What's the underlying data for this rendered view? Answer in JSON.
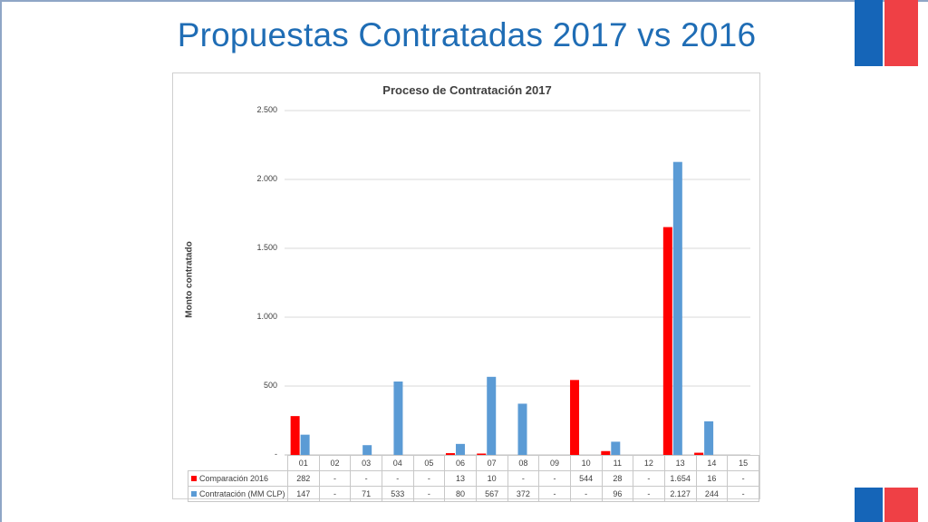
{
  "slide": {
    "title": "Propuestas Contratadas 2017 vs 2016"
  },
  "chart_data": {
    "type": "bar",
    "title": "Proceso de Contratación 2017",
    "ylabel": "Monto contratado",
    "xlabel": "",
    "ylim": [
      0,
      2500
    ],
    "y_ticks": [
      "-",
      "500",
      "1.000",
      "1.500",
      "2.000",
      "2.500"
    ],
    "grid": true,
    "categories": [
      "01",
      "02",
      "03",
      "04",
      "05",
      "06",
      "07",
      "08",
      "09",
      "10",
      "11",
      "12",
      "13",
      "14",
      "15"
    ],
    "series": [
      {
        "name": "Comparación 2016",
        "color": "#ff0000",
        "values": [
          282,
          0,
          0,
          0,
          0,
          13,
          10,
          0,
          0,
          544,
          28,
          0,
          1654,
          16,
          0
        ],
        "labels": [
          "282",
          "-",
          "-",
          "-",
          "-",
          "13",
          "10",
          "-",
          "-",
          "544",
          "28",
          "-",
          "1.654",
          "16",
          "-"
        ]
      },
      {
        "name": "Contratación (MM CLP)",
        "color": "#5b9bd5",
        "values": [
          147,
          0,
          71,
          533,
          0,
          80,
          567,
          372,
          0,
          0,
          96,
          0,
          2127,
          244,
          0
        ],
        "labels": [
          "147",
          "-",
          "71",
          "533",
          "-",
          "80",
          "567",
          "372",
          "-",
          "-",
          "96",
          "-",
          "2.127",
          "244",
          "-"
        ]
      }
    ],
    "legend": "data-table"
  }
}
